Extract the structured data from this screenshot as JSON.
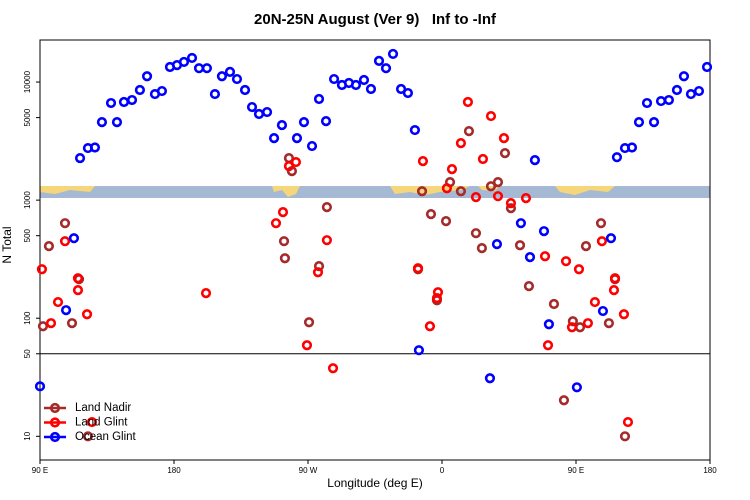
{
  "chart_data": {
    "type": "scatter",
    "title": "20N-25N August (Ver 9)   Inf to -Inf",
    "x_label": "Longitude (deg E)",
    "y_label": "N Total",
    "log_y": true,
    "xlim": [
      90,
      540
    ],
    "ylim": [
      6.3,
      22700
    ],
    "xticks": [
      {
        "value": 90,
        "label": "90 E"
      },
      180,
      {
        "value": 270,
        "label": "90 W"
      },
      {
        "value": 360,
        "label": "0"
      },
      {
        "value": 450,
        "label": "90 E"
      },
      {
        "value": 540,
        "label": "180"
      }
    ],
    "yticks": [
      10,
      50,
      100,
      500,
      1000,
      5000,
      10000
    ],
    "hline": 50,
    "legend": "bottom-left",
    "series": [
      {
        "name": "Land Nadir",
        "color": "#a52a2a",
        "x": [
          92.0,
          96.0,
          106.8,
          111.5,
          116.2,
          122.2,
          253.9,
          257.2,
          254.5,
          259.2,
          277.4,
          282.7,
          270.7,
          343.9,
          346.6,
          352.6,
          356.6,
          362.7,
          365.4,
          372.7,
          378.1,
          382.8,
          386.8,
          392.9,
          397.6,
          402.3,
          406.3,
          412.4,
          418.4,
          435.2,
          441.9,
          447.9,
          452.7,
          456.7,
          466.8,
          472.1,
          476.2,
          482.9
        ],
        "values": [
          85.5,
          408,
          638,
          90.8,
          214,
          10.0,
          449,
          2270,
          322,
          1760,
          276,
          873,
          92.5,
          260,
          1190,
          761,
          142,
          664,
          1420,
          1190,
          3840,
          525,
          392,
          1310,
          1420,
          2500,
          855,
          415,
          187,
          132,
          20.2,
          94.3,
          83.9,
          408,
          638,
          90.8,
          214,
          10.0
        ]
      },
      {
        "name": "Land Glint",
        "color": "#ff0000",
        "x": [
          91.3,
          97.4,
          102.1,
          106.8,
          115.5,
          115.5,
          121.6,
          124.9,
          201.5,
          248.5,
          253.2,
          257.2,
          261.9,
          269.3,
          276.7,
          282.7,
          286.8,
          343.9,
          347.2,
          351.9,
          357.3,
          356.6,
          363.3,
          366.7,
          372.7,
          377.4,
          382.8,
          387.5,
          392.9,
          397.6,
          401.6,
          406.3,
          416.4,
          429.2,
          431.2,
          443.3,
          447.3,
          452.0,
          458.0,
          462.7,
          467.4,
          475.5,
          476.2,
          482.2,
          484.9
        ],
        "values": [
          260,
          90.8,
          137,
          449,
          173,
          218,
          108,
          13.2,
          163,
          638,
          791,
          1940,
          2100,
          59.0,
          245,
          458,
          37.7,
          265,
          2140,
          85.5,
          166,
          148,
          1260,
          1830,
          3040,
          6780,
          1060,
          2230,
          5150,
          1080,
          3350,
          943,
          1040,
          335,
          59.0,
          304,
          83.9,
          260,
          90.8,
          137,
          449,
          173,
          218,
          108,
          13.2
        ]
      },
      {
        "name": "Ocean Glint",
        "color": "#0000ff",
        "x": [
          90,
          112.8,
          107.5,
          116.9,
          122.2,
          126.9,
          131.6,
          137.7,
          141.7,
          146.4,
          151.8,
          157.1,
          161.9,
          167.2,
          171.9,
          177.3,
          182.0,
          186.7,
          192.1,
          196.8,
          202.1,
          207.5,
          212.2,
          217.6,
          222.3,
          227.7,
          232.4,
          237.1,
          242.5,
          247.2,
          252.5,
          262.6,
          267.3,
          272.7,
          277.4,
          282.1,
          287.5,
          292.8,
          297.5,
          302.2,
          307.6,
          312.3,
          317.7,
          322.4,
          327.1,
          332.5,
          337.1,
          341.8,
          344.5,
          392.2,
          396.9,
          413.0,
          419.1,
          422.4,
          428.5,
          431.8,
          450.6,
          468.1,
          473.5,
          477.5,
          482.9,
          487.6,
          492.3,
          497.7,
          502.4,
          507.1,
          512.4,
          517.8,
          522.5,
          527.2,
          532.6,
          538.0
        ],
        "values": [
          26.5,
          476,
          117,
          2270,
          2760,
          2790,
          4580,
          6640,
          4580,
          6780,
          7040,
          8560,
          11200,
          7910,
          8390,
          13400,
          13900,
          14800,
          16000,
          13100,
          13100,
          7910,
          11200,
          12200,
          10600,
          8560,
          6140,
          5360,
          5570,
          3350,
          4320,
          3350,
          4580,
          2870,
          7180,
          4670,
          10600,
          9440,
          9820,
          9440,
          10400,
          8730,
          15100,
          13100,
          17300,
          8730,
          8070,
          3920,
          53.6,
          31.0,
          424,
          638,
          329,
          2180,
          546,
          88.9,
          26.0,
          115,
          476,
          2310,
          2760,
          2790,
          4580,
          6640,
          4580,
          6900,
          7040,
          8560,
          11200,
          7910,
          8390,
          13400
        ]
      }
    ]
  }
}
